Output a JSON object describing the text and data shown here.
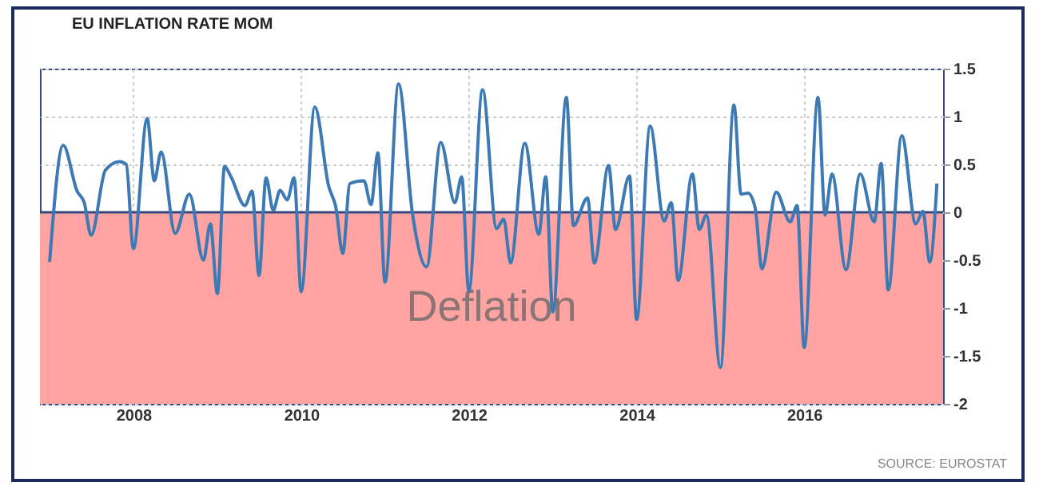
{
  "chart_data": {
    "type": "line",
    "title": "EU INFLATION RATE MOM",
    "x": [
      "2007-01",
      "2007-03",
      "2007-05",
      "2007-06",
      "2007-07",
      "2007-09",
      "2007-11",
      "2007-12",
      "2008-01",
      "2008-03",
      "2008-04",
      "2008-05",
      "2008-07",
      "2008-09",
      "2008-11",
      "2008-12",
      "2009-01",
      "2009-02",
      "2009-03",
      "2009-05",
      "2009-06",
      "2009-07",
      "2009-08",
      "2009-09",
      "2009-10",
      "2009-11",
      "2009-12",
      "2010-01",
      "2010-03",
      "2010-05",
      "2010-06",
      "2010-07",
      "2010-08",
      "2010-10",
      "2010-11",
      "2010-12",
      "2011-01",
      "2011-03",
      "2011-05",
      "2011-07",
      "2011-09",
      "2011-11",
      "2011-12",
      "2012-01",
      "2012-03",
      "2012-05",
      "2012-06",
      "2012-07",
      "2012-09",
      "2012-11",
      "2012-12",
      "2013-01",
      "2013-03",
      "2013-04",
      "2013-06",
      "2013-07",
      "2013-09",
      "2013-10",
      "2013-12",
      "2014-01",
      "2014-03",
      "2014-05",
      "2014-06",
      "2014-07",
      "2014-09",
      "2014-10",
      "2014-11",
      "2015-01",
      "2015-03",
      "2015-04",
      "2015-05",
      "2015-06",
      "2015-07",
      "2015-09",
      "2015-11",
      "2015-12",
      "2016-01",
      "2016-03",
      "2016-04",
      "2016-05",
      "2016-07",
      "2016-09",
      "2016-11",
      "2016-12",
      "2017-01",
      "2017-03",
      "2017-05",
      "2017-06",
      "2017-07",
      "2017-08"
    ],
    "series": [
      {
        "color": "#3d7ab3",
        "values": [
          -0.52,
          0.7,
          0.22,
          0.1,
          -0.24,
          0.44,
          0.53,
          0.5,
          -0.38,
          0.98,
          0.33,
          0.63,
          -0.22,
          0.19,
          -0.5,
          -0.12,
          -0.85,
          0.48,
          0.37,
          0.07,
          0.22,
          -0.66,
          0.36,
          0.02,
          0.23,
          0.13,
          0.36,
          -0.83,
          1.1,
          0.27,
          0.05,
          -0.43,
          0.3,
          0.33,
          0.08,
          0.62,
          -0.73,
          1.34,
          -0.02,
          -0.57,
          0.73,
          0.1,
          0.37,
          -0.82,
          1.28,
          -0.17,
          -0.07,
          -0.53,
          0.72,
          -0.23,
          0.37,
          -1.04,
          1.2,
          -0.14,
          0.15,
          -0.53,
          0.49,
          -0.18,
          0.38,
          -1.12,
          0.9,
          -0.09,
          0.1,
          -0.71,
          0.4,
          -0.18,
          -0.03,
          -1.62,
          1.12,
          0.19,
          0.2,
          0.05,
          -0.59,
          0.21,
          -0.1,
          0.07,
          -1.41,
          1.2,
          -0.03,
          0.4,
          -0.6,
          0.4,
          -0.1,
          0.51,
          -0.81,
          0.8,
          -0.12,
          0.01,
          -0.52,
          0.3
        ]
      }
    ],
    "xlim": [
      "2006-11-20",
      "2017-08-28"
    ],
    "xticks": [
      "2008",
      "2010",
      "2012",
      "2014",
      "2016"
    ],
    "ylim": [
      -2,
      1.5
    ],
    "yticks": [
      -2,
      -1.5,
      -1,
      -0.5,
      0,
      0.5,
      1,
      1.5
    ],
    "grid": true,
    "bands": [
      {
        "axis": "y",
        "from": 0,
        "to": -2,
        "label": "Deflation",
        "color": "#ffa3a3"
      }
    ],
    "ref_lines": [
      {
        "axis": "y",
        "value": 0,
        "color": "#34497f"
      }
    ],
    "annotations": [
      "SOURCE: EUROSTAT"
    ]
  }
}
